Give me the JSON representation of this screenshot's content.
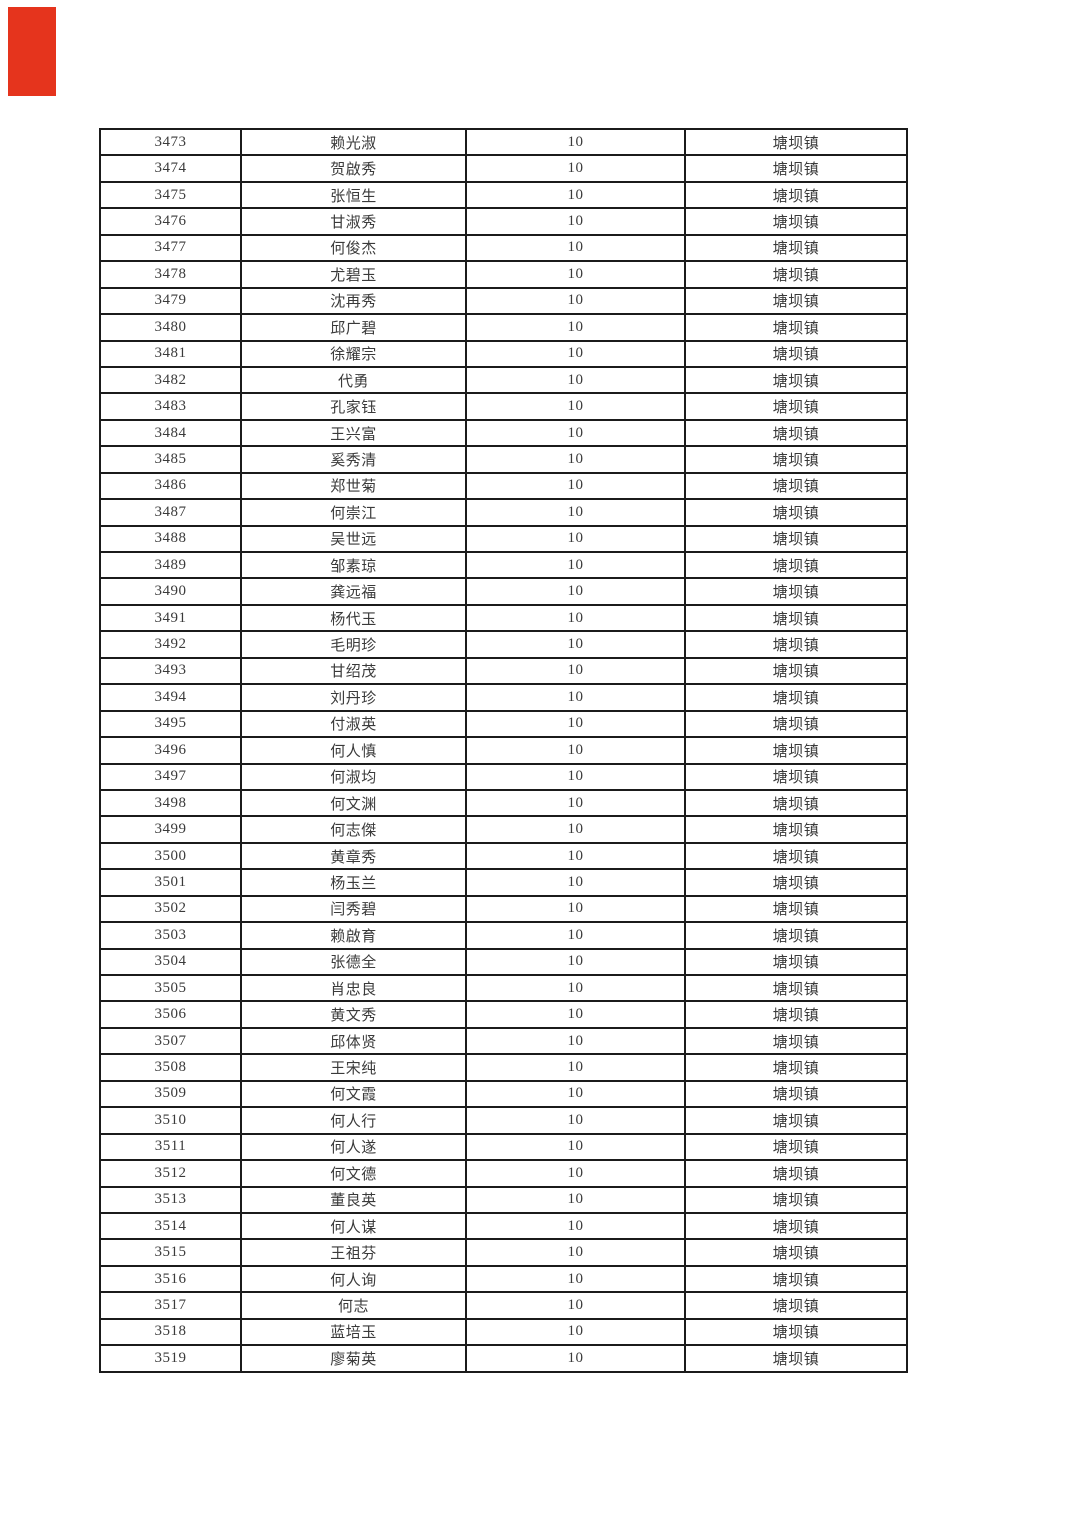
{
  "page": {
    "background_color": "#ffffff",
    "description": "continuation page of a printed roster table, no headers visible"
  },
  "annotation": {
    "red_marker_color": "#e5341d"
  },
  "table": {
    "columns_visible_headers": [],
    "repeated_amount_value": "10",
    "repeated_town_value": "塘坝镇",
    "rows": [
      [
        "3473",
        "赖光淑",
        "10",
        "塘坝镇"
      ],
      [
        "3474",
        "贺啟秀",
        "10",
        "塘坝镇"
      ],
      [
        "3475",
        "张恒生",
        "10",
        "塘坝镇"
      ],
      [
        "3476",
        "甘淑秀",
        "10",
        "塘坝镇"
      ],
      [
        "3477",
        "何俊杰",
        "10",
        "塘坝镇"
      ],
      [
        "3478",
        "尤碧玉",
        "10",
        "塘坝镇"
      ],
      [
        "3479",
        "沈再秀",
        "10",
        "塘坝镇"
      ],
      [
        "3480",
        "邱广碧",
        "10",
        "塘坝镇"
      ],
      [
        "3481",
        "徐耀宗",
        "10",
        "塘坝镇"
      ],
      [
        "3482",
        "代勇",
        "10",
        "塘坝镇"
      ],
      [
        "3483",
        "孔家钰",
        "10",
        "塘坝镇"
      ],
      [
        "3484",
        "王兴富",
        "10",
        "塘坝镇"
      ],
      [
        "3485",
        "奚秀清",
        "10",
        "塘坝镇"
      ],
      [
        "3486",
        "郑世菊",
        "10",
        "塘坝镇"
      ],
      [
        "3487",
        "何崇江",
        "10",
        "塘坝镇"
      ],
      [
        "3488",
        "吴世远",
        "10",
        "塘坝镇"
      ],
      [
        "3489",
        "邹素琼",
        "10",
        "塘坝镇"
      ],
      [
        "3490",
        "龚远福",
        "10",
        "塘坝镇"
      ],
      [
        "3491",
        "杨代玉",
        "10",
        "塘坝镇"
      ],
      [
        "3492",
        "毛明珍",
        "10",
        "塘坝镇"
      ],
      [
        "3493",
        "甘绍茂",
        "10",
        "塘坝镇"
      ],
      [
        "3494",
        "刘丹珍",
        "10",
        "塘坝镇"
      ],
      [
        "3495",
        "付淑英",
        "10",
        "塘坝镇"
      ],
      [
        "3496",
        "何人慎",
        "10",
        "塘坝镇"
      ],
      [
        "3497",
        "何淑均",
        "10",
        "塘坝镇"
      ],
      [
        "3498",
        "何文渊",
        "10",
        "塘坝镇"
      ],
      [
        "3499",
        "何志傑",
        "10",
        "塘坝镇"
      ],
      [
        "3500",
        "黄章秀",
        "10",
        "塘坝镇"
      ],
      [
        "3501",
        "杨玉兰",
        "10",
        "塘坝镇"
      ],
      [
        "3502",
        "闫秀碧",
        "10",
        "塘坝镇"
      ],
      [
        "3503",
        "赖啟育",
        "10",
        "塘坝镇"
      ],
      [
        "3504",
        "张德全",
        "10",
        "塘坝镇"
      ],
      [
        "3505",
        "肖忠良",
        "10",
        "塘坝镇"
      ],
      [
        "3506",
        "黄文秀",
        "10",
        "塘坝镇"
      ],
      [
        "3507",
        "邱体贤",
        "10",
        "塘坝镇"
      ],
      [
        "3508",
        "王宋纯",
        "10",
        "塘坝镇"
      ],
      [
        "3509",
        "何文霞",
        "10",
        "塘坝镇"
      ],
      [
        "3510",
        "何人行",
        "10",
        "塘坝镇"
      ],
      [
        "3511",
        "何人遂",
        "10",
        "塘坝镇"
      ],
      [
        "3512",
        "何文德",
        "10",
        "塘坝镇"
      ],
      [
        "3513",
        "董良英",
        "10",
        "塘坝镇"
      ],
      [
        "3514",
        "何人谋",
        "10",
        "塘坝镇"
      ],
      [
        "3515",
        "王祖芬",
        "10",
        "塘坝镇"
      ],
      [
        "3516",
        "何人询",
        "10",
        "塘坝镇"
      ],
      [
        "3517",
        "何志",
        "10",
        "塘坝镇"
      ],
      [
        "3518",
        "蓝培玉",
        "10",
        "塘坝镇"
      ],
      [
        "3519",
        "廖菊英",
        "10",
        "塘坝镇"
      ]
    ]
  }
}
